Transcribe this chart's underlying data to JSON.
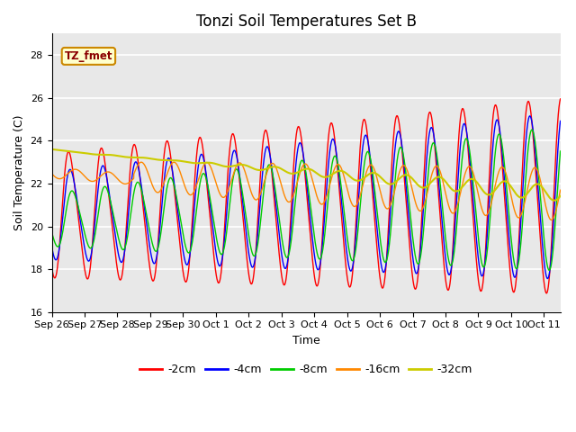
{
  "title": "Tonzi Soil Temperatures Set B",
  "xlabel": "Time",
  "ylabel": "Soil Temperature (C)",
  "ylim": [
    16,
    29
  ],
  "xlim_days": [
    0,
    15.5
  ],
  "tick_labels": [
    "Sep 26",
    "Sep 27",
    "Sep 28",
    "Sep 29",
    "Sep 30",
    "Oct 1",
    "Oct 2",
    "Oct 3",
    "Oct 4",
    "Oct 5",
    "Oct 6",
    "Oct 7",
    "Oct 8",
    "Oct 9",
    "Oct 10",
    "Oct 11"
  ],
  "tick_positions": [
    0,
    1,
    2,
    3,
    4,
    5,
    6,
    7,
    8,
    9,
    10,
    11,
    12,
    13,
    14,
    15
  ],
  "colors": {
    "-2cm": "#ff0000",
    "-4cm": "#0000ff",
    "-8cm": "#00cc00",
    "-16cm": "#ff8800",
    "-32cm": "#cccc00"
  },
  "legend_label": "TZ_fmet",
  "legend_bg": "#ffffcc",
  "legend_border": "#cc8800",
  "bg_color": "#e8e8e8",
  "yticks": [
    16,
    18,
    20,
    22,
    24,
    26,
    28
  ],
  "title_fontsize": 12,
  "axis_fontsize": 9,
  "tick_fontsize": 8
}
